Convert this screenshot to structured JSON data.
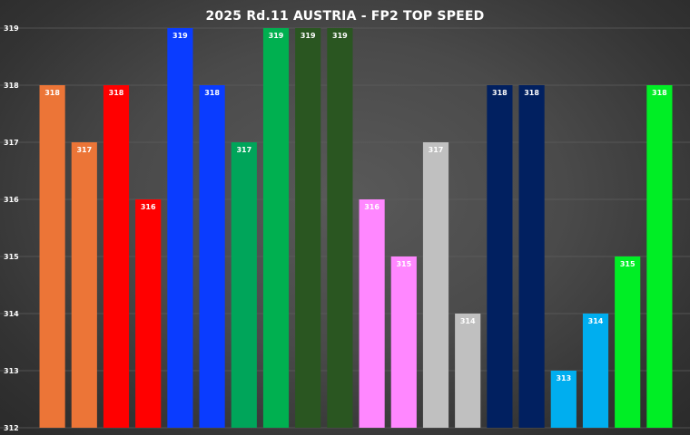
{
  "chart_data": {
    "type": "bar",
    "title": "2025 Rd.11 AUSTRIA - FP2 TOP SPEED",
    "xlabel": "",
    "ylabel": "",
    "ylim": [
      312,
      319
    ],
    "yticks": [
      312,
      313,
      314,
      315,
      316,
      317,
      318,
      319
    ],
    "grid": true,
    "legend": "none",
    "values": [
      318,
      317,
      318,
      316,
      319,
      318,
      317,
      319,
      319,
      319,
      316,
      315,
      317,
      314,
      318,
      318,
      313,
      314,
      315,
      318
    ],
    "colors": [
      "#ec7537",
      "#ec7537",
      "#ff0000",
      "#ff0000",
      "#0a3cff",
      "#0a3cff",
      "#00a55a",
      "#00b050",
      "#2a5621",
      "#2a5621",
      "#ff87ff",
      "#ff87ff",
      "#c0c0c0",
      "#c0c0c0",
      "#012060",
      "#012060",
      "#00aeef",
      "#00aeef",
      "#00ee25",
      "#00ee25"
    ],
    "data_labels": [
      "318",
      "317",
      "318",
      "316",
      "319",
      "318",
      "317",
      "319",
      "319",
      "319",
      "316",
      "315",
      "317",
      "314",
      "318",
      "318",
      "313",
      "314",
      "315",
      "318"
    ]
  }
}
